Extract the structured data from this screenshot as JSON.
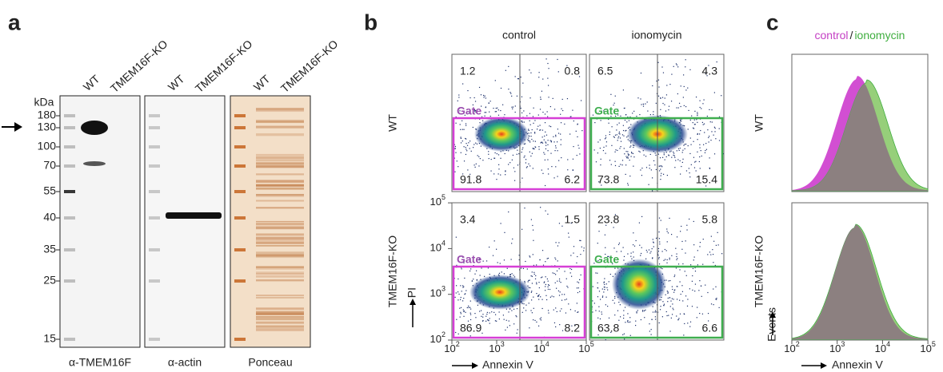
{
  "panel_a": {
    "label": "a",
    "lanes": [
      "WT",
      "TMEM16F-KO"
    ],
    "unit": "kDa",
    "markers": [
      180,
      130,
      100,
      70,
      55,
      40,
      35,
      25,
      15
    ],
    "blots": [
      "α-TMEM16F",
      "α-actin",
      "Ponceau"
    ]
  },
  "panel_b": {
    "label": "b",
    "columns": [
      "control",
      "ionomycin"
    ],
    "rows": [
      "WT",
      "TMEM16F-KO"
    ],
    "gate": "Gate",
    "quadrants": [
      [
        1.2,
        0.8,
        91.8,
        6.2
      ],
      [
        6.5,
        4.3,
        73.8,
        15.4
      ],
      [
        3.4,
        1.5,
        86.9,
        8.2
      ],
      [
        23.8,
        5.8,
        63.8,
        6.6
      ]
    ],
    "tick_base": "10",
    "tick_exponents": [
      2,
      3,
      4,
      5
    ],
    "y_label": "PI",
    "x_label": "Annexin V"
  },
  "panel_c": {
    "label": "c",
    "legend": [
      "control",
      "ionomycin"
    ],
    "separator": "/",
    "rows": [
      "WT",
      "TMEM16F-KO"
    ],
    "tick_base": "10",
    "tick_exponents": [
      2,
      3,
      4,
      5
    ],
    "y_label": "Events",
    "x_label": "Annexin V"
  }
}
